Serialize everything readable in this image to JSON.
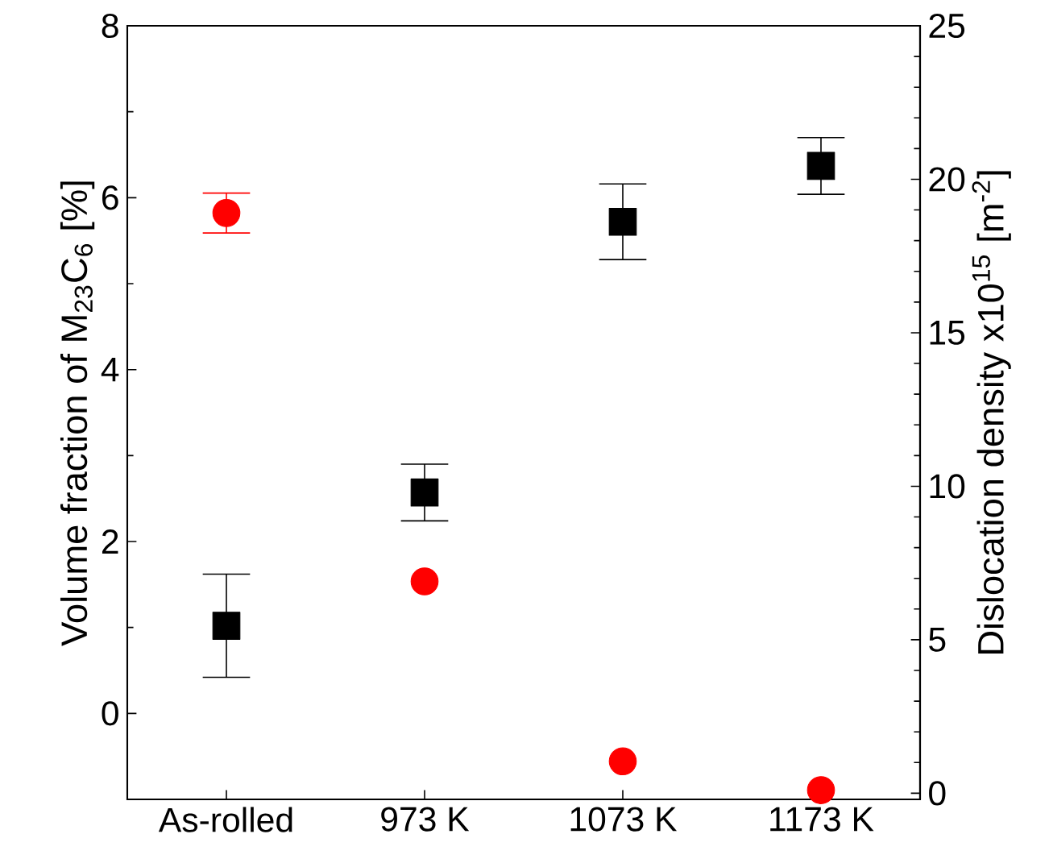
{
  "chart_data": {
    "type": "scatter",
    "categories": [
      "As-rolled",
      "973 K",
      "1073 K",
      "1173 K"
    ],
    "ylabel": "Volume fraction of M$_{23}$C$_{6}$ [%]",
    "y2label": "Dislocation density x10$^{15}$ [m$^{-2}$]",
    "ylim": [
      -1,
      8
    ],
    "yticks": [
      0,
      2,
      4,
      6,
      8
    ],
    "y2lim": [
      -0.2,
      25
    ],
    "y2ticks": [
      0,
      5,
      10,
      15,
      20,
      25
    ],
    "series": [
      {
        "color": "#000000",
        "marker": "square",
        "values": [
          1.02,
          2.57,
          5.72,
          6.37
        ],
        "errors": [
          0.6,
          0.33,
          0.44,
          0.33
        ]
      },
      {
        "color": "#ff0000",
        "marker": "circle",
        "axis": "y2",
        "values": [
          18.9,
          6.9,
          1.04,
          0.1
        ],
        "errors": [
          0.65,
          null,
          null,
          null
        ]
      }
    ]
  }
}
